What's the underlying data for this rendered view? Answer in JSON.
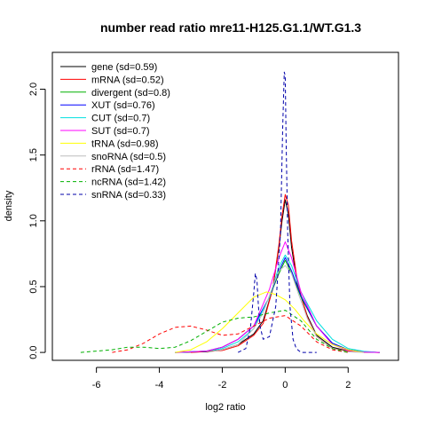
{
  "chart_data": {
    "type": "line",
    "title": "number read ratio mre11-H125.G1.1/WT.G1.3",
    "xlabel": "log2 ratio",
    "ylabel": "density",
    "xlim": [
      -7.4,
      3.6
    ],
    "ylim": [
      -0.06,
      2.28
    ],
    "xticks": [
      -6,
      -4,
      -2,
      0,
      2
    ],
    "yticks": [
      0.0,
      0.5,
      1.0,
      1.5,
      2.0
    ],
    "xtick_labels": [
      "-6",
      "-4",
      "-2",
      "0",
      "2"
    ],
    "ytick_labels": [
      "0.0",
      "0.5",
      "1.0",
      "1.5",
      "2.0"
    ],
    "legend_position": "top-left",
    "series": [
      {
        "name": "gene (sd=0.59)",
        "color": "#000000",
        "dash": "solid",
        "x": [
          -3.5,
          -2.5,
          -2,
          -1.5,
          -1,
          -0.7,
          -0.4,
          -0.2,
          -0.1,
          0,
          0.1,
          0.2,
          0.4,
          0.7,
          1,
          1.5,
          2,
          2.5,
          3
        ],
        "y": [
          0,
          0.005,
          0.02,
          0.06,
          0.14,
          0.24,
          0.48,
          0.8,
          1.0,
          1.16,
          1.05,
          0.8,
          0.5,
          0.28,
          0.13,
          0.04,
          0.01,
          0.002,
          0
        ]
      },
      {
        "name": "mRNA (sd=0.52)",
        "color": "#ff0000",
        "dash": "solid",
        "x": [
          -3,
          -2,
          -1.5,
          -1,
          -0.7,
          -0.4,
          -0.2,
          -0.1,
          0,
          0.1,
          0.2,
          0.4,
          0.7,
          1,
          1.5,
          2,
          2.5,
          3
        ],
        "y": [
          0,
          0.015,
          0.05,
          0.13,
          0.22,
          0.48,
          0.82,
          1.04,
          1.2,
          1.12,
          0.85,
          0.52,
          0.27,
          0.12,
          0.03,
          0.008,
          0.002,
          0
        ]
      },
      {
        "name": "divergent (sd=0.8)",
        "color": "#00b000",
        "dash": "solid",
        "x": [
          -3.5,
          -2.5,
          -2,
          -1.5,
          -1,
          -0.5,
          -0.2,
          0,
          0.2,
          0.5,
          1,
          1.5,
          2,
          2.5,
          3
        ],
        "y": [
          0,
          0.01,
          0.04,
          0.1,
          0.2,
          0.42,
          0.6,
          0.7,
          0.6,
          0.42,
          0.2,
          0.07,
          0.02,
          0.005,
          0
        ]
      },
      {
        "name": "XUT (sd=0.76)",
        "color": "#0000ff",
        "dash": "solid",
        "x": [
          -3.5,
          -2.5,
          -2,
          -1.5,
          -1,
          -0.5,
          -0.2,
          0,
          0.2,
          0.5,
          1,
          1.5,
          2,
          2.5,
          3
        ],
        "y": [
          0,
          0.01,
          0.04,
          0.1,
          0.2,
          0.42,
          0.62,
          0.72,
          0.62,
          0.43,
          0.2,
          0.07,
          0.02,
          0.005,
          0
        ]
      },
      {
        "name": "CUT (sd=0.7)",
        "color": "#00e0e0",
        "dash": "solid",
        "x": [
          -3.5,
          -2.5,
          -2,
          -1.5,
          -1,
          -0.5,
          -0.2,
          0,
          0.2,
          0.5,
          1,
          1.5,
          2,
          2.5,
          3
        ],
        "y": [
          0,
          0.01,
          0.03,
          0.08,
          0.18,
          0.42,
          0.65,
          0.74,
          0.66,
          0.46,
          0.24,
          0.1,
          0.03,
          0.008,
          0
        ]
      },
      {
        "name": "SUT (sd=0.7)",
        "color": "#ff00ff",
        "dash": "solid",
        "x": [
          -3.5,
          -2.5,
          -2,
          -1.5,
          -1,
          -0.5,
          -0.2,
          0,
          0.2,
          0.5,
          1,
          1.5,
          2,
          2.5,
          3
        ],
        "y": [
          0,
          0.01,
          0.04,
          0.1,
          0.2,
          0.48,
          0.72,
          0.84,
          0.72,
          0.46,
          0.2,
          0.06,
          0.015,
          0.003,
          0
        ]
      },
      {
        "name": "tRNA (sd=0.98)",
        "color": "#ffff00",
        "dash": "solid",
        "x": [
          -3.5,
          -3,
          -2.5,
          -2,
          -1.5,
          -1,
          -0.6,
          -0.3,
          0,
          0.3,
          0.6,
          1,
          1.5,
          2,
          2.5
        ],
        "y": [
          0,
          0.02,
          0.08,
          0.18,
          0.3,
          0.42,
          0.46,
          0.44,
          0.4,
          0.33,
          0.24,
          0.14,
          0.06,
          0.02,
          0
        ]
      },
      {
        "name": "snoRNA (sd=0.5)",
        "color": "#bebebe",
        "dash": "solid",
        "x": [
          -2.5,
          -2,
          -1.5,
          -1,
          -0.7,
          -0.4,
          -0.2,
          0,
          0.2,
          0.4,
          0.7,
          1,
          1.5,
          2,
          2.5
        ],
        "y": [
          0,
          0.02,
          0.06,
          0.18,
          0.3,
          0.5,
          0.62,
          0.66,
          0.6,
          0.46,
          0.26,
          0.12,
          0.03,
          0.005,
          0
        ]
      },
      {
        "name": "rRNA (sd=1.47)",
        "color": "#ff0000",
        "dash": "dashed",
        "x": [
          -5.5,
          -5,
          -4.5,
          -4,
          -3.5,
          -3,
          -2.5,
          -2,
          -1.5,
          -1,
          -0.5,
          0,
          0.5,
          1,
          1.5,
          2
        ],
        "y": [
          0,
          0.02,
          0.07,
          0.14,
          0.19,
          0.2,
          0.17,
          0.13,
          0.14,
          0.2,
          0.26,
          0.28,
          0.2,
          0.08,
          0.02,
          0
        ]
      },
      {
        "name": "ncRNA (sd=1.42)",
        "color": "#00b000",
        "dash": "dashed",
        "x": [
          -6.5,
          -6,
          -5.5,
          -5,
          -4.5,
          -4,
          -3.5,
          -3,
          -2.5,
          -2,
          -1.5,
          -1,
          -0.5,
          0,
          0.5,
          1,
          1.5,
          2
        ],
        "y": [
          0,
          0.01,
          0.02,
          0.04,
          0.04,
          0.03,
          0.04,
          0.09,
          0.16,
          0.23,
          0.26,
          0.27,
          0.3,
          0.32,
          0.24,
          0.1,
          0.03,
          0
        ]
      },
      {
        "name": "snRNA (sd=0.33)",
        "color": "#0000aa",
        "dash": "dashed",
        "x": [
          -1.5,
          -1.25,
          -1.1,
          -1,
          -0.95,
          -0.9,
          -0.85,
          -0.8,
          -0.7,
          -0.5,
          -0.3,
          -0.15,
          -0.08,
          -0.03,
          0,
          0.03,
          0.08,
          0.15,
          0.25,
          0.35,
          0.5,
          1
        ],
        "y": [
          0,
          0.03,
          0.2,
          0.45,
          0.6,
          0.55,
          0.35,
          0.2,
          0.1,
          0.12,
          0.35,
          0.9,
          1.7,
          2.13,
          2.1,
          1.6,
          0.9,
          0.35,
          0.1,
          0.03,
          0,
          0
        ]
      }
    ]
  }
}
